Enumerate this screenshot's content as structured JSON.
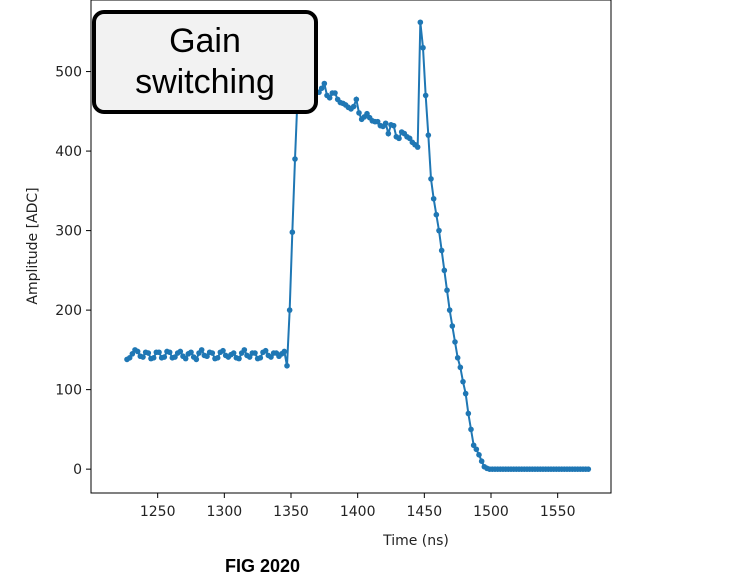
{
  "annotation": {
    "text": "Gain switching"
  },
  "caption": "FIG 2020",
  "chart_data": {
    "type": "line",
    "title": "",
    "xlabel": "Time (ns)",
    "ylabel": "Amplitude [ADC]",
    "xlim": [
      1200,
      1590
    ],
    "ylim": [
      -30,
      590
    ],
    "xticks": [
      1250,
      1300,
      1350,
      1400,
      1450,
      1500,
      1550
    ],
    "yticks": [
      0,
      100,
      200,
      300,
      400,
      500
    ],
    "grid": false,
    "line_color": "#1f77b4",
    "marker": "circle",
    "series": [
      {
        "x": [
          1227,
          1229,
          1231,
          1233,
          1235,
          1237,
          1239,
          1241,
          1243,
          1245,
          1247,
          1249,
          1251,
          1253,
          1255,
          1257,
          1259,
          1261,
          1263,
          1265,
          1267,
          1269,
          1271,
          1273,
          1275,
          1277,
          1279,
          1281,
          1283,
          1285,
          1287,
          1289,
          1291,
          1293,
          1295,
          1297,
          1299,
          1301,
          1303,
          1305,
          1307,
          1309,
          1311,
          1313,
          1315,
          1317,
          1319,
          1321,
          1323,
          1325,
          1327,
          1329,
          1331,
          1333,
          1335,
          1337,
          1339,
          1341,
          1343,
          1345,
          1347,
          1349,
          1351,
          1353,
          1355,
          1357,
          1359,
          1361,
          1363,
          1365,
          1367,
          1369,
          1371,
          1373,
          1375,
          1377,
          1379,
          1381,
          1383,
          1385,
          1387,
          1389,
          1391,
          1393,
          1395,
          1397,
          1399,
          1401,
          1403,
          1405,
          1407,
          1409,
          1411,
          1413,
          1415,
          1417,
          1419,
          1421,
          1423,
          1425,
          1427,
          1429,
          1431,
          1433,
          1435,
          1437,
          1439,
          1441,
          1443,
          1445,
          1447,
          1449,
          1451,
          1453,
          1455,
          1457,
          1459,
          1461,
          1463,
          1465,
          1467,
          1469,
          1471,
          1473,
          1475,
          1477,
          1479,
          1481,
          1483,
          1485,
          1487,
          1489,
          1491,
          1493,
          1495,
          1497,
          1499,
          1501,
          1503,
          1505,
          1507,
          1509,
          1511,
          1513,
          1515,
          1517,
          1519,
          1521,
          1523,
          1525,
          1527,
          1529,
          1531,
          1533,
          1535,
          1537,
          1539,
          1541,
          1543,
          1545,
          1547,
          1549,
          1551,
          1553,
          1555,
          1557,
          1559,
          1561,
          1563,
          1565,
          1567,
          1569,
          1571,
          1573
        ],
        "y": [
          138,
          140,
          145,
          150,
          148,
          142,
          141,
          147,
          146,
          139,
          140,
          147,
          147,
          140,
          141,
          148,
          147,
          140,
          141,
          146,
          148,
          142,
          139,
          145,
          147,
          141,
          138,
          146,
          150,
          143,
          142,
          147,
          146,
          139,
          140,
          147,
          149,
          143,
          141,
          144,
          146,
          140,
          139,
          146,
          150,
          143,
          141,
          146,
          146,
          139,
          140,
          147,
          149,
          143,
          141,
          146,
          146,
          142,
          145,
          148,
          130,
          200,
          298,
          390,
          472,
          520,
          525,
          505,
          490,
          482,
          477,
          475,
          474,
          479,
          485,
          470,
          467,
          473,
          473,
          465,
          461,
          460,
          458,
          455,
          453,
          456,
          465,
          448,
          440,
          443,
          447,
          442,
          438,
          437,
          437,
          432,
          431,
          435,
          422,
          433,
          432,
          418,
          416,
          424,
          422,
          418,
          416,
          411,
          408,
          405,
          562,
          530,
          470,
          420,
          365,
          340,
          320,
          300,
          275,
          250,
          225,
          200,
          180,
          160,
          140,
          128,
          110,
          95,
          70,
          50,
          30,
          25,
          18,
          10,
          3,
          1,
          0,
          0,
          0,
          0,
          0,
          0,
          0,
          0,
          0,
          0,
          0,
          0,
          0,
          0,
          0,
          0,
          0,
          0,
          0,
          0,
          0,
          0,
          0,
          0,
          0,
          0,
          0,
          0,
          0,
          0,
          0,
          0,
          0,
          0,
          0,
          0,
          0,
          0
        ]
      }
    ]
  }
}
